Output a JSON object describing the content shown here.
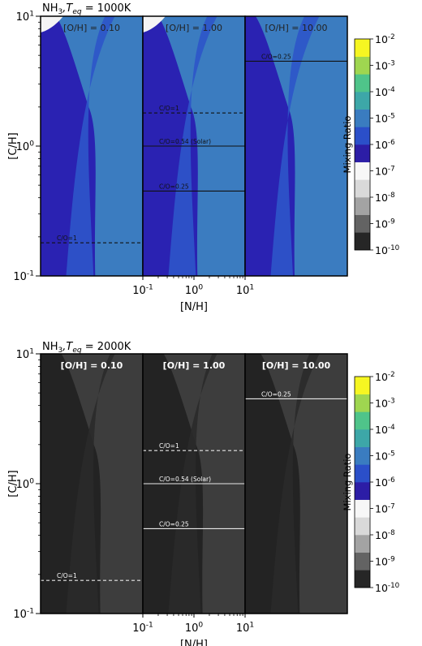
{
  "colorbar_levels": [
    "10^-10",
    "10^-9",
    "10^-8",
    "10^-7",
    "10^-6",
    "10^-5",
    "10^-4",
    "10^-3",
    "10^-2"
  ],
  "colorbar_colors": [
    "#262626",
    "#636363",
    "#a3a3a3",
    "#d9d9d9",
    "#f7f7f7",
    "#2c1da6",
    "#2b4fc9",
    "#3a7cc0",
    "#3da7a8",
    "#4fc48a",
    "#9fd650",
    "#f6f622"
  ],
  "chart_data": [
    {
      "type": "heatmap",
      "title_species": "NH",
      "title_sub": "3",
      "title_teq": "T",
      "title_teq_sub": "eq",
      "title_value": " = 1000K",
      "xlabel": "[N/H]",
      "ylabel": "[C/H]",
      "colorbar_label": "Mixing Ratio",
      "scale": "log",
      "xlim": [
        0.1,
        10
      ],
      "ylim": [
        0.1,
        10
      ],
      "y_ticks": [
        "10^-1",
        "10^0",
        "10^1"
      ],
      "x_ticks": [
        "10^-1",
        "10^0",
        "10^1"
      ],
      "panels": [
        {
          "label": "[O/H] = 0.10",
          "dominant_mixing_ratio": "10^-6 to 10^-5",
          "reference_lines": [
            {
              "label": "C/O=1",
              "c_h": 0.18,
              "style": "dashed"
            }
          ]
        },
        {
          "label": "[O/H] = 1.00",
          "dominant_mixing_ratio": "10^-6 to 10^-5",
          "reference_lines": [
            {
              "label": "C/O=1",
              "c_h": 1.8,
              "style": "dashed"
            },
            {
              "label": "C/O=0.54 (Solar)",
              "c_h": 1.0,
              "style": "solid"
            },
            {
              "label": "C/O=0.25",
              "c_h": 0.45,
              "style": "solid"
            }
          ]
        },
        {
          "label": "[O/H] = 10.00",
          "dominant_mixing_ratio": "10^-6 to 10^-5",
          "reference_lines": [
            {
              "label": "C/O=0.25",
              "c_h": 4.5,
              "style": "solid"
            }
          ]
        }
      ]
    },
    {
      "type": "heatmap",
      "title_species": "NH",
      "title_sub": "3",
      "title_teq": "T",
      "title_teq_sub": "eq",
      "title_value": " = 2000K",
      "xlabel": "[N/H]",
      "ylabel": "[C/H]",
      "colorbar_label": "Mixing Ratio",
      "scale": "log",
      "xlim": [
        0.1,
        10
      ],
      "ylim": [
        0.1,
        10
      ],
      "y_ticks": [
        "10^-1",
        "10^0",
        "10^1"
      ],
      "x_ticks": [
        "10^-1",
        "10^0",
        "10^1"
      ],
      "panels": [
        {
          "label": "[O/H] = 0.10",
          "dominant_mixing_ratio": "10^-10 to 10^-9",
          "reference_lines": [
            {
              "label": "C/O=1",
              "c_h": 0.18,
              "style": "dashed"
            }
          ]
        },
        {
          "label": "[O/H] = 1.00",
          "dominant_mixing_ratio": "10^-10 to 10^-9",
          "reference_lines": [
            {
              "label": "C/O=1",
              "c_h": 1.8,
              "style": "dashed"
            },
            {
              "label": "C/O=0.54 (Solar)",
              "c_h": 1.0,
              "style": "solid"
            },
            {
              "label": "C/O=0.25",
              "c_h": 0.45,
              "style": "solid"
            }
          ]
        },
        {
          "label": "[O/H] = 10.00",
          "dominant_mixing_ratio": "10^-10 to 10^-9",
          "reference_lines": [
            {
              "label": "C/O=0.25",
              "c_h": 4.5,
              "style": "solid"
            }
          ]
        }
      ]
    }
  ]
}
